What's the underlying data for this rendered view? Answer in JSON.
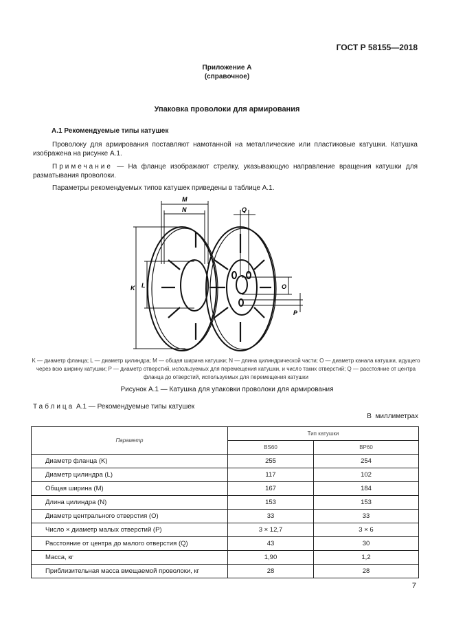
{
  "header": {
    "standard": "ГОСТ Р 58155—2018"
  },
  "appendix": {
    "title": "Приложение А",
    "subtitle": "(справочное)"
  },
  "section_title": "Упаковка проволоки для армирования",
  "subsection_title": "А.1 Рекомендуемые типы катушек",
  "paragraphs": {
    "p1": "Проволоку для армирования поставляют намотанной на металлические или пластиковые катушки. Катушка изображена на рисунке А.1.",
    "note_label": "Примечание",
    "note_text": " — На фланце изображают стрелку, указывающую направление вращения катушки для разматывания проволоки.",
    "p2": "Параметры рекомендуемых типов катушек приведены в таблице А.1."
  },
  "figure": {
    "labels": {
      "M": "M",
      "N": "N",
      "K": "K",
      "L": "L",
      "Q": "Q",
      "O": "O",
      "P": "P"
    },
    "legend": "K — диаметр фланца; L — диаметр цилиндра; M — общая ширина катушки; N — длина цилиндрической части; O — диаметр канала катушки, идущего через всю ширину катушки; P — диаметр отверстий, используемых для перемещения катушки, и число таких отверстий; Q — расстояние от центра фланца до отверстий, используемых для перемещения катушки",
    "caption": "Рисунок А.1 — Катушка для упаковки проволоки для армирования"
  },
  "table": {
    "label": "Таблица",
    "caption": " А.1 — Рекомендуемые типы катушек",
    "units": "В  миллиметрах",
    "param_header": "Параметр",
    "type_header": "Тип катушки",
    "columns": [
      "BS60",
      "BP60"
    ],
    "rows": [
      {
        "param": "Диаметр фланца (K)",
        "bs60": "255",
        "bp60": "254"
      },
      {
        "param": "Диаметр цилиндра (L)",
        "bs60": "117",
        "bp60": "102"
      },
      {
        "param": "Общая ширина (M)",
        "bs60": "167",
        "bp60": "184"
      },
      {
        "param": "Длина цилиндра (N)",
        "bs60": "153",
        "bp60": "153"
      },
      {
        "param": "Диаметр центрального отверстия (O)",
        "bs60": "33",
        "bp60": "33"
      },
      {
        "param": "Число × диаметр малых отверстий (P)",
        "bs60": "3 × 12,7",
        "bp60": "3 × 6"
      },
      {
        "param": "Расстояние от центра до малого отверстия (Q)",
        "bs60": "43",
        "bp60": "30"
      },
      {
        "param": "Масса, кг",
        "bs60": "1,90",
        "bp60": "1,2"
      },
      {
        "param": "Приблизительная масса вмещаемой проволоки, кг",
        "bs60": "28",
        "bp60": "28"
      }
    ]
  },
  "page_number": "7"
}
